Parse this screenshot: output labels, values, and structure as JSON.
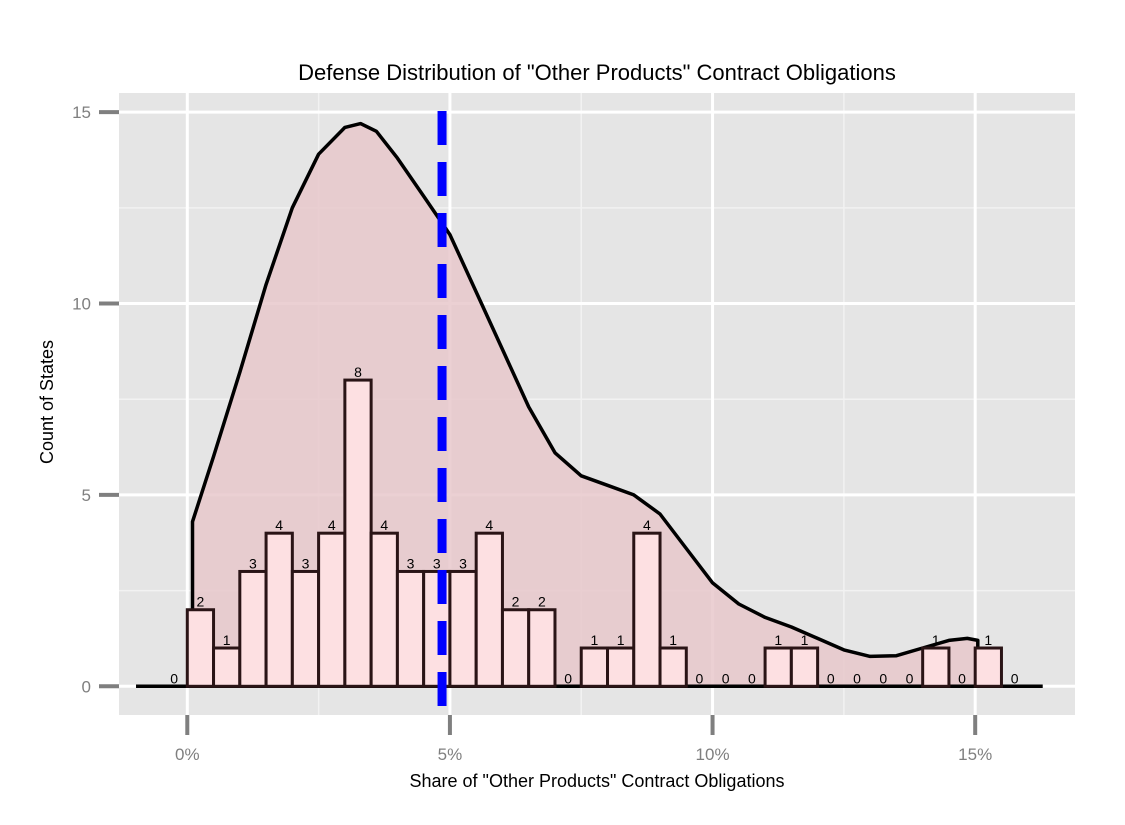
{
  "chart_data": {
    "type": "bar",
    "title": "Defense Distribution of \"Other Products\" Contract Obligations",
    "xlabel": "Share of \"Other Products\" Contract Obligations",
    "ylabel": "Count of States",
    "xlim": [
      -1.3,
      16.9
    ],
    "ylim": [
      -0.75,
      15.5
    ],
    "x_ticks": [
      0,
      5,
      10,
      15
    ],
    "x_tick_labels": [
      "0%",
      "5%",
      "10%",
      "15%"
    ],
    "y_ticks": [
      0,
      5,
      10,
      15
    ],
    "y_tick_labels": [
      "0",
      "5",
      "10",
      "15"
    ],
    "bin_width": 0.5,
    "bins": [
      {
        "x0": -0.5,
        "count": 0
      },
      {
        "x0": 0.0,
        "count": 2
      },
      {
        "x0": 0.5,
        "count": 1
      },
      {
        "x0": 1.0,
        "count": 3
      },
      {
        "x0": 1.5,
        "count": 4
      },
      {
        "x0": 2.0,
        "count": 3
      },
      {
        "x0": 2.5,
        "count": 4
      },
      {
        "x0": 3.0,
        "count": 8
      },
      {
        "x0": 3.5,
        "count": 4
      },
      {
        "x0": 4.0,
        "count": 3
      },
      {
        "x0": 4.5,
        "count": 3
      },
      {
        "x0": 5.0,
        "count": 3
      },
      {
        "x0": 5.5,
        "count": 4
      },
      {
        "x0": 6.0,
        "count": 2
      },
      {
        "x0": 6.5,
        "count": 2
      },
      {
        "x0": 7.0,
        "count": 0
      },
      {
        "x0": 7.5,
        "count": 1
      },
      {
        "x0": 8.0,
        "count": 1
      },
      {
        "x0": 8.5,
        "count": 4
      },
      {
        "x0": 9.0,
        "count": 1
      },
      {
        "x0": 9.5,
        "count": 0
      },
      {
        "x0": 10.0,
        "count": 0
      },
      {
        "x0": 10.5,
        "count": 0
      },
      {
        "x0": 11.0,
        "count": 1
      },
      {
        "x0": 11.5,
        "count": 1
      },
      {
        "x0": 12.0,
        "count": 0
      },
      {
        "x0": 12.5,
        "count": 0
      },
      {
        "x0": 13.0,
        "count": 0
      },
      {
        "x0": 13.5,
        "count": 0
      },
      {
        "x0": 14.0,
        "count": 1
      },
      {
        "x0": 14.5,
        "count": 0
      },
      {
        "x0": 15.0,
        "count": 1
      },
      {
        "x0": 15.5,
        "count": 0
      }
    ],
    "density_curve": [
      [
        0.1,
        4.3
      ],
      [
        0.5,
        6.0
      ],
      [
        1.0,
        8.2
      ],
      [
        1.5,
        10.5
      ],
      [
        2.0,
        12.5
      ],
      [
        2.5,
        13.9
      ],
      [
        3.0,
        14.6
      ],
      [
        3.3,
        14.7
      ],
      [
        3.6,
        14.5
      ],
      [
        4.0,
        13.8
      ],
      [
        4.5,
        12.8
      ],
      [
        5.0,
        11.8
      ],
      [
        5.5,
        10.3
      ],
      [
        6.0,
        8.8
      ],
      [
        6.5,
        7.3
      ],
      [
        7.0,
        6.1
      ],
      [
        7.5,
        5.5
      ],
      [
        8.0,
        5.25
      ],
      [
        8.5,
        5.0
      ],
      [
        9.0,
        4.5
      ],
      [
        9.5,
        3.6
      ],
      [
        10.0,
        2.7
      ],
      [
        10.5,
        2.15
      ],
      [
        11.0,
        1.8
      ],
      [
        11.5,
        1.55
      ],
      [
        12.0,
        1.25
      ],
      [
        12.5,
        0.95
      ],
      [
        13.0,
        0.78
      ],
      [
        13.5,
        0.8
      ],
      [
        14.0,
        1.0
      ],
      [
        14.5,
        1.2
      ],
      [
        14.85,
        1.25
      ],
      [
        15.05,
        1.2
      ],
      [
        15.05,
        0
      ]
    ],
    "mean_line_x": 4.85,
    "grid": true,
    "colors": {
      "panel": "#e5e5e5",
      "grid_major": "#ffffff",
      "grid_minor": "#f2f2f2",
      "bar_fill": "#fde0e2",
      "bar_stroke": "#2a1416",
      "density_fill": "#e8c8cb",
      "density_stroke": "#000000",
      "mean_line": "#0000ff",
      "tick": "#7f7f7f"
    }
  }
}
